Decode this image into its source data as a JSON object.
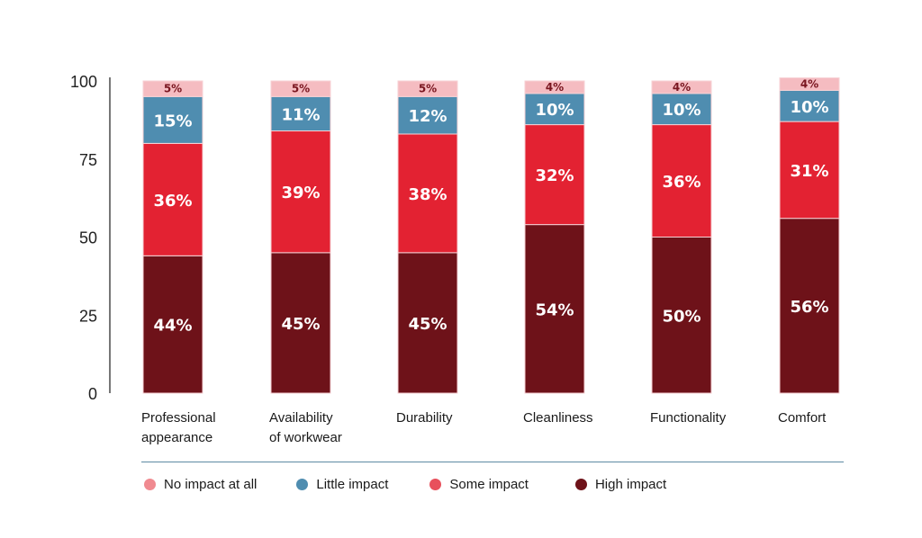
{
  "chart_data": {
    "type": "bar",
    "stacked": true,
    "title": "",
    "xlabel": "",
    "ylabel": "",
    "ylim": [
      0,
      100
    ],
    "yticks": [
      0,
      25,
      50,
      75,
      100
    ],
    "grid": false,
    "legend_position": "bottom",
    "categories": [
      [
        "Professional",
        "appearance"
      ],
      [
        "Availability",
        "of workwear"
      ],
      [
        "Durability"
      ],
      [
        "Cleanliness"
      ],
      [
        "Functionality"
      ],
      [
        "Comfort"
      ]
    ],
    "series": [
      {
        "name": "High impact",
        "color": "#6e1219",
        "values": [
          44,
          45,
          45,
          54,
          50,
          56
        ]
      },
      {
        "name": "Some impact",
        "color": "#e32232",
        "values": [
          36,
          39,
          38,
          32,
          36,
          31
        ]
      },
      {
        "name": "Little impact",
        "color": "#4f8db0",
        "values": [
          15,
          11,
          12,
          10,
          10,
          10
        ]
      },
      {
        "name": "No impact at all",
        "color": "#f5bcc1",
        "values": [
          5,
          5,
          5,
          4,
          4,
          4
        ]
      }
    ],
    "value_suffix": "%"
  },
  "legend": {
    "items": [
      {
        "label": "No impact at all",
        "color": "#f08a90"
      },
      {
        "label": "Little impact",
        "color": "#4f8db0"
      },
      {
        "label": "Some impact",
        "color": "#e8505c"
      },
      {
        "label": "High impact",
        "color": "#6e1219"
      }
    ]
  }
}
